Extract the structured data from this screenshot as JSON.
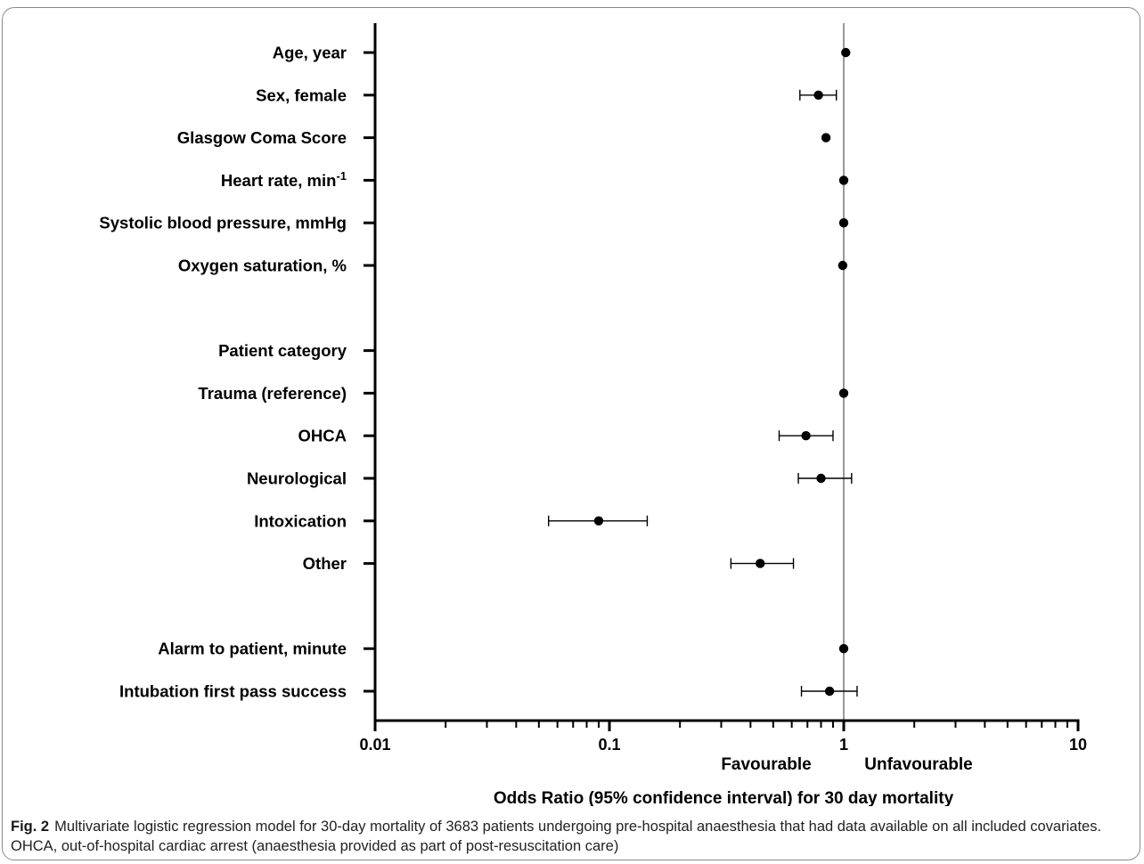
{
  "chart_data": {
    "type": "forest",
    "x_scale": "log",
    "xlim": [
      0.01,
      10
    ],
    "xlabel": "Odds Ratio (95% confidence interval) for 30 day mortality",
    "x_ticks": [
      "0.01",
      "0.1",
      "1",
      "10"
    ],
    "reference_line": 1,
    "direction_labels": {
      "left": "Favourable",
      "right": "Unfavourable"
    },
    "rows": [
      {
        "label": "Age, year",
        "or": 1.02,
        "lo": 1.01,
        "hi": 1.03
      },
      {
        "label": "Sex, female",
        "or": 0.78,
        "lo": 0.65,
        "hi": 0.93
      },
      {
        "label": "Glasgow Coma Score",
        "or": 0.84,
        "lo": 0.82,
        "hi": 0.86
      },
      {
        "label": "Heart rate, min",
        "label_sup": "-1",
        "or": 1.0,
        "lo": 1.0,
        "hi": 1.0
      },
      {
        "label": "Systolic blood pressure, mmHg",
        "or": 1.0,
        "lo": 1.0,
        "hi": 1.0
      },
      {
        "label": "Oxygen saturation, %",
        "or": 0.99,
        "lo": 0.99,
        "hi": 1.0
      },
      {
        "label": "",
        "blank": true
      },
      {
        "label": "Patient category",
        "header": true
      },
      {
        "label": "Trauma (reference)",
        "or": 1.0,
        "lo": 1.0,
        "hi": 1.0
      },
      {
        "label": "OHCA",
        "or": 0.69,
        "lo": 0.53,
        "hi": 0.9
      },
      {
        "label": "Neurological",
        "or": 0.8,
        "lo": 0.64,
        "hi": 1.08
      },
      {
        "label": "Intoxication",
        "or": 0.09,
        "lo": 0.055,
        "hi": 0.145
      },
      {
        "label": "Other",
        "or": 0.44,
        "lo": 0.33,
        "hi": 0.61
      },
      {
        "label": "",
        "blank": true
      },
      {
        "label": "Alarm to patient, minute",
        "or": 1.0,
        "lo": 1.0,
        "hi": 1.0
      },
      {
        "label": "Intubation first pass success",
        "or": 0.87,
        "lo": 0.66,
        "hi": 1.14
      }
    ]
  },
  "caption": {
    "fig_label": "Fig. 2",
    "text": "Multivariate logistic regression model for 30-day mortality of 3683 patients undergoing pre-hospital anaesthesia that had data available on all included covariates. OHCA, out-of-hospital cardiac arrest (anaesthesia provided as part of post-resuscitation care)"
  }
}
